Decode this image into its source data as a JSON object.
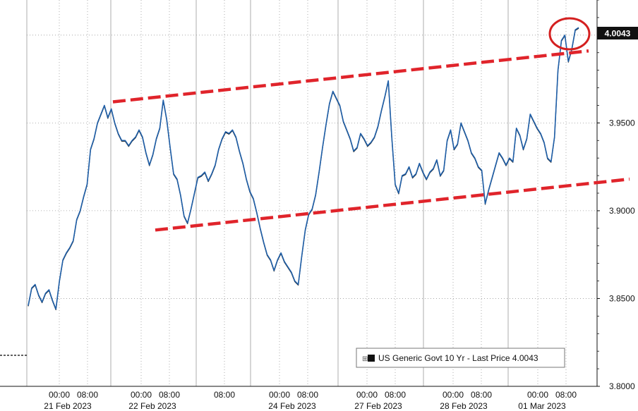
{
  "chart_data": {
    "type": "line",
    "series": [
      {
        "name": "US Generic Govt 10 Yr - Last Price",
        "last_value": "4.0043",
        "values": [
          3.846,
          3.856,
          3.858,
          3.852,
          3.848,
          3.853,
          3.855,
          3.849,
          3.844,
          3.86,
          3.872,
          3.876,
          3.879,
          3.883,
          3.895,
          3.9,
          3.908,
          3.915,
          3.935,
          3.941,
          3.95,
          3.955,
          3.96,
          3.953,
          3.958,
          3.95,
          3.944,
          3.94,
          3.94,
          3.937,
          3.94,
          3.942,
          3.946,
          3.942,
          3.933,
          3.926,
          3.932,
          3.941,
          3.947,
          3.963,
          3.952,
          3.936,
          3.921,
          3.918,
          3.909,
          3.897,
          3.893,
          3.901,
          3.91,
          3.919,
          3.92,
          3.922,
          3.917,
          3.921,
          3.926,
          3.935,
          3.941,
          3.945,
          3.944,
          3.946,
          3.942,
          3.934,
          3.927,
          3.918,
          3.911,
          3.907,
          3.899,
          3.89,
          3.882,
          3.875,
          3.872,
          3.866,
          3.872,
          3.876,
          3.871,
          3.868,
          3.865,
          3.86,
          3.858,
          3.874,
          3.889,
          3.898,
          3.901,
          3.909,
          3.922,
          3.936,
          3.949,
          3.961,
          3.968,
          3.964,
          3.96,
          3.951,
          3.946,
          3.941,
          3.934,
          3.936,
          3.944,
          3.941,
          3.937,
          3.939,
          3.942,
          3.948,
          3.957,
          3.965,
          3.974,
          3.942,
          3.915,
          3.91,
          3.92,
          3.921,
          3.925,
          3.919,
          3.921,
          3.927,
          3.922,
          3.918,
          3.922,
          3.924,
          3.929,
          3.92,
          3.923,
          3.94,
          3.946,
          3.935,
          3.938,
          3.95,
          3.945,
          3.94,
          3.933,
          3.93,
          3.925,
          3.923,
          3.904,
          3.912,
          3.919,
          3.926,
          3.933,
          3.93,
          3.926,
          3.93,
          3.928,
          3.947,
          3.943,
          3.935,
          3.941,
          3.955,
          3.951,
          3.947,
          3.944,
          3.939,
          3.93,
          3.928,
          3.942,
          3.98,
          3.997,
          4.0,
          3.985,
          3.992,
          4.003,
          4.0043
        ]
      }
    ],
    "ylim": [
      3.8,
      4.02
    ],
    "yticks": [
      "3.8000",
      "3.8500",
      "3.9000",
      "3.9500",
      "4.0000"
    ],
    "xtick_times": [
      "00:00",
      "08:00",
      "00:00",
      "08:00",
      "08:00",
      "00:00",
      "08:00",
      "00:00",
      "08:00",
      "00:00",
      "08:00",
      "00:00",
      "08:00"
    ],
    "xtick_dates": [
      "21 Feb 2023",
      "22 Feb 2023",
      "24 Feb 2023",
      "27 Feb 2023",
      "28 Feb 2023",
      "01 Mar 2023"
    ],
    "annotations": {
      "channel_color": "#e0242b",
      "circle_color": "#d42020"
    },
    "legend": {
      "position": "bottom-right",
      "label": "US Generic Govt 10 Yr - Last Price 4.0043"
    },
    "line_color": "#1f5fa8",
    "grid": true
  }
}
